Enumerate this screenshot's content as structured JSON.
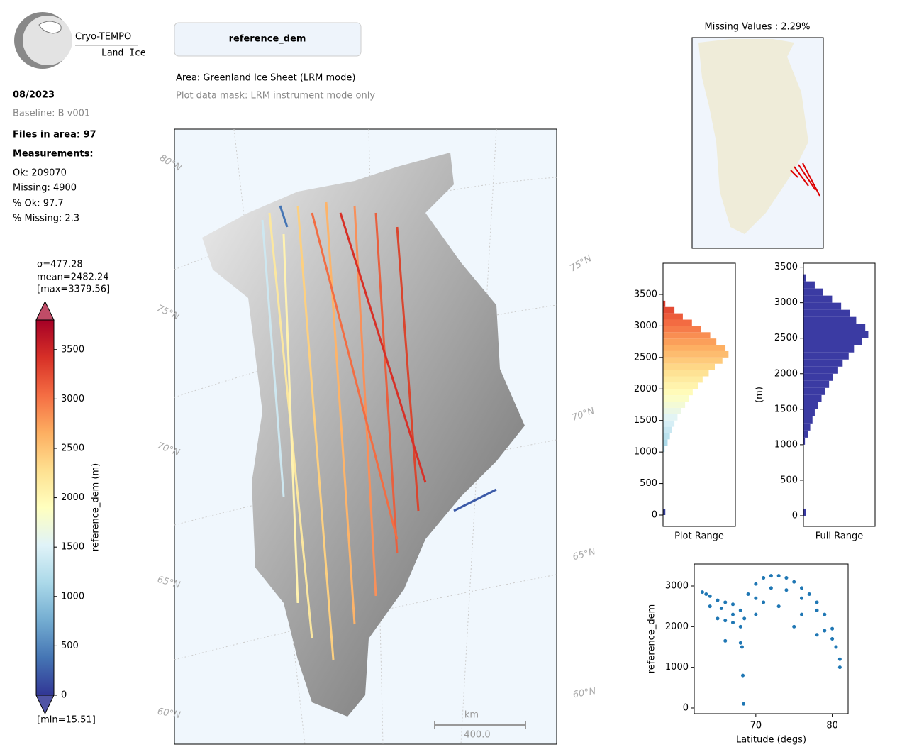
{
  "header": {
    "logo_title": "Cryo-TEMPO",
    "logo_subtitle": "Land Ice",
    "date": "08/2023",
    "baseline": "Baseline: B v001",
    "files": "Files in area: 97",
    "measurements_title": "Measurements:",
    "stats": [
      "Ok: 209070",
      "Missing: 4900",
      "% Ok: 97.7",
      "% Missing: 2.3"
    ]
  },
  "main": {
    "title": "reference_dem",
    "area": "Area: Greenland Ice Sheet (LRM mode)",
    "mask": "Plot data mask: LRM instrument mode only",
    "lat_labels": [
      "80°N",
      "75°N",
      "70°N",
      "65°N",
      "60°N",
      "75°N",
      "70°N",
      "65°N",
      "60°N"
    ],
    "scale_unit": "km",
    "scale_value": "400.0"
  },
  "missing": {
    "title": "Missing Values : 2.29%"
  },
  "chart_data": [
    {
      "type": "colorbar",
      "label": "reference_dem (m)",
      "annotations": [
        "σ=477.28",
        "mean=2482.24",
        "[max=3379.56]",
        "[min=15.51]"
      ],
      "ylim": [
        0,
        3800
      ],
      "yticks": [
        0,
        500,
        1000,
        1500,
        2000,
        2500,
        3000,
        3500
      ],
      "colormap": [
        "#313695",
        "#4575b4",
        "#74add1",
        "#abd9e9",
        "#e0f3f8",
        "#ffffbf",
        "#fee090",
        "#fdae61",
        "#f46d43",
        "#d73027",
        "#a50026"
      ]
    },
    {
      "type": "histogram",
      "orientation": "horizontal",
      "xlabel": "Plot Range",
      "color": "colormap",
      "bins": [
        0,
        100,
        200,
        300,
        400,
        500,
        600,
        700,
        800,
        900,
        1000,
        1100,
        1200,
        1300,
        1400,
        1500,
        1600,
        1700,
        1800,
        1900,
        2000,
        2100,
        2200,
        2300,
        2400,
        2500,
        2600,
        2700,
        2800,
        2900,
        3000,
        3100,
        3200,
        3300,
        3400
      ],
      "counts": [
        300,
        0,
        0,
        0,
        0,
        0,
        0,
        0,
        0,
        0,
        200,
        600,
        900,
        1200,
        1500,
        1900,
        2400,
        2900,
        3400,
        3900,
        4600,
        5200,
        6000,
        6800,
        7800,
        8600,
        8200,
        7000,
        6200,
        5000,
        3800,
        2600,
        1500,
        300
      ],
      "ylim": [
        -180,
        3995
      ],
      "yticks": [
        0,
        500,
        1000,
        1500,
        2000,
        2500,
        3000,
        3500
      ],
      "xlim": [
        0,
        9500
      ]
    },
    {
      "type": "histogram",
      "orientation": "horizontal",
      "xlabel": "Full Range",
      "ylabel": "(m)",
      "color": "#3b3ba3",
      "bins": [
        0,
        100,
        200,
        300,
        400,
        500,
        600,
        700,
        800,
        900,
        1000,
        1100,
        1200,
        1300,
        1400,
        1500,
        1600,
        1700,
        1800,
        1900,
        2000,
        2100,
        2200,
        2300,
        2400,
        2500,
        2600,
        2700,
        2800,
        2900,
        3000,
        3100,
        3200,
        3300,
        3400
      ],
      "counts": [
        300,
        0,
        0,
        0,
        0,
        0,
        0,
        0,
        0,
        0,
        200,
        600,
        900,
        1200,
        1500,
        1900,
        2400,
        2900,
        3400,
        3900,
        4600,
        5200,
        6000,
        6800,
        7800,
        8600,
        8200,
        7000,
        6200,
        5000,
        3800,
        2600,
        1500,
        300
      ],
      "ylim": [
        -150,
        3556
      ],
      "yticks": [
        0,
        500,
        1000,
        1500,
        2000,
        2500,
        3000,
        3500
      ],
      "xlim": [
        0,
        9500
      ]
    },
    {
      "type": "scatter",
      "xlabel": "Latitude (degs)",
      "ylabel": "reference_dem",
      "color": "#1f77b4",
      "x": [
        63,
        63.5,
        64,
        65,
        66,
        67,
        68,
        68.2,
        68.3,
        68.4,
        69,
        70,
        71,
        72,
        73,
        74,
        75,
        76,
        77,
        78,
        79,
        80,
        80.5,
        81,
        65,
        66,
        67,
        68,
        70,
        72,
        74,
        76,
        78,
        80,
        66,
        68,
        70,
        73,
        76,
        79,
        81,
        64,
        65.5,
        67,
        68.5,
        71,
        75,
        78
      ],
      "y": [
        2850,
        2800,
        2750,
        2650,
        2600,
        2550,
        2400,
        1500,
        800,
        100,
        2800,
        3050,
        3200,
        3250,
        3250,
        3200,
        3100,
        2950,
        2800,
        2600,
        2300,
        1950,
        1500,
        1000,
        2200,
        2150,
        2100,
        2000,
        2700,
        2950,
        2900,
        2700,
        2400,
        1700,
        1650,
        1600,
        2300,
        2500,
        2300,
        1900,
        1200,
        2500,
        2450,
        2300,
        2200,
        2600,
        2000,
        1800
      ],
      "xlim": [
        61.94,
        82.08
      ],
      "xticks": [
        70,
        80
      ],
      "ylim": [
        -140,
        3541
      ],
      "yticks": [
        0,
        1000,
        2000,
        3000
      ]
    }
  ]
}
